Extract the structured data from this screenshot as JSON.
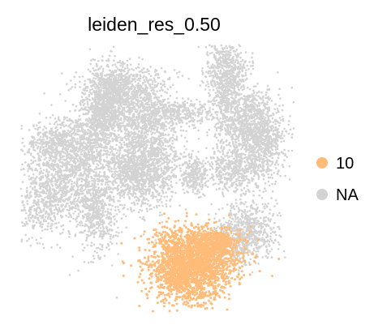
{
  "chart_data": {
    "type": "scatter",
    "title": "leiden_res_0.50",
    "xlabel": "",
    "ylabel": "",
    "grid": false,
    "axes_visible": false,
    "legend_position": "right",
    "series": [
      {
        "name": "NA",
        "color": "#d3d3d3"
      },
      {
        "name": "10",
        "color": "#ffbb78"
      }
    ],
    "legend": [
      {
        "label": "10",
        "color": "#ffbb78"
      },
      {
        "label": "NA",
        "color": "#d3d3d3"
      }
    ]
  }
}
